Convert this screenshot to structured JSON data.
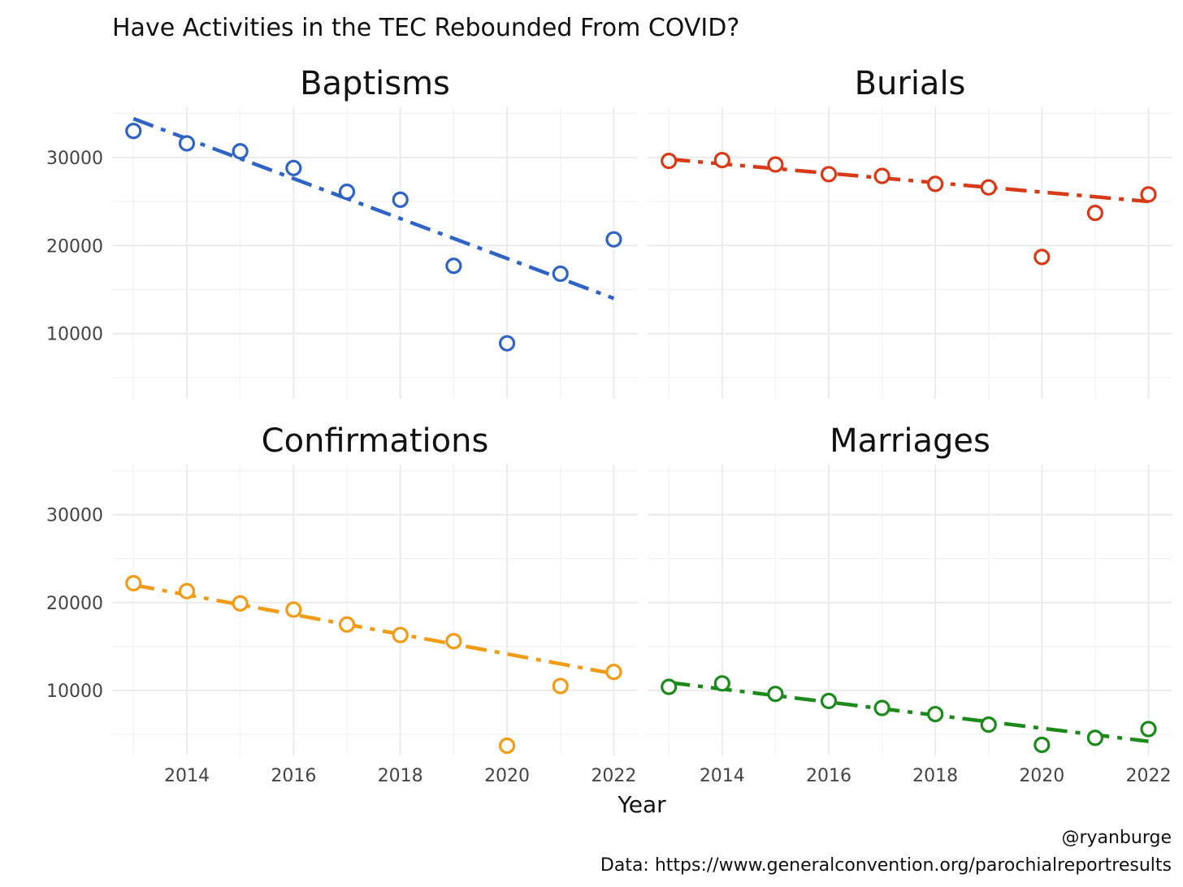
{
  "chart_data": {
    "type": "scatter",
    "title": "Have Activities in the TEC Rebounded From COVID?",
    "xlabel": "Year",
    "ylabel": "",
    "caption_lines": [
      "@ryanburge",
      "Data: https://www.generalconvention.org/parochialreportresults"
    ],
    "x": [
      2013,
      2014,
      2015,
      2016,
      2017,
      2018,
      2019,
      2020,
      2021,
      2022
    ],
    "x_ticks": [
      "2014",
      "2016",
      "2018",
      "2020",
      "2022"
    ],
    "y_ticks": [
      "10000",
      "20000",
      "30000"
    ],
    "xlim": [
      2012.6,
      2022.45
    ],
    "ylim": [
      2600,
      35700
    ],
    "grid": true,
    "legend": "none",
    "trend_line_style": "dash-dot",
    "series": [
      {
        "name": "Baptisms",
        "color": "#2f64c6",
        "values": [
          33000,
          31600,
          30700,
          28800,
          26100,
          25200,
          17700,
          8900,
          16800,
          20700
        ],
        "trend": [
          34400,
          14000
        ]
      },
      {
        "name": "Burials",
        "color": "#d83a17",
        "values": [
          29600,
          29700,
          29200,
          28100,
          27900,
          27000,
          26600,
          18700,
          23700,
          25800
        ],
        "trend": [
          29800,
          25000
        ]
      },
      {
        "name": "Confirmations",
        "color": "#f29b16",
        "values": [
          22200,
          21300,
          19900,
          19200,
          17500,
          16300,
          15600,
          3700,
          10500,
          12100
        ],
        "trend": [
          22000,
          11900
        ]
      },
      {
        "name": "Marriages",
        "color": "#1a8a1a",
        "values": [
          10400,
          10800,
          9600,
          8800,
          8000,
          7300,
          6100,
          3800,
          4600,
          5600
        ],
        "trend": [
          10900,
          4200
        ]
      }
    ]
  }
}
